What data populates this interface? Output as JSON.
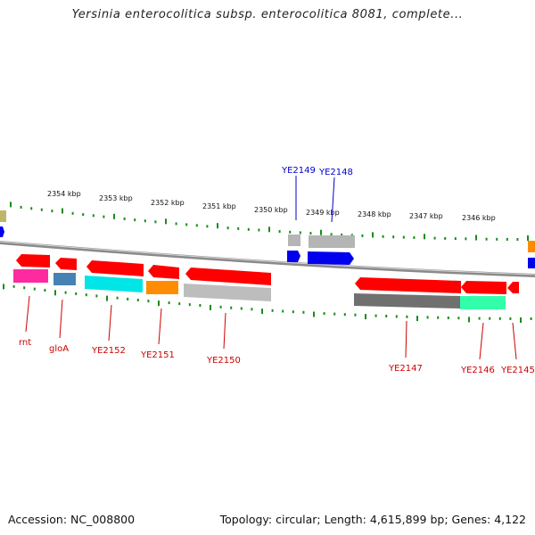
{
  "title": "Yersinia enterocolitica subsp. enterocolitica 8081, complete...",
  "footer": {
    "accession": "Accession: NC_008800",
    "summary": "Topology: circular; Length: 4,615,899 bp; Genes: 4,122"
  },
  "ruler": {
    "ticks": [
      "2354 kbp",
      "2353 kbp",
      "2352 kbp",
      "2351 kbp",
      "2350 kbp",
      "2349 kbp",
      "2348 kbp",
      "2347 kbp",
      "2346 kbp"
    ]
  },
  "colors": {
    "backbone": "#888888",
    "tick": "#1a8c1a",
    "cds": "#ff0000",
    "forward_gene": "#0000ee",
    "label_top": "#0000cc",
    "label_bottom": "#cc0000",
    "product_magenta": "#ff2aa0",
    "product_steel": "#4682b4",
    "product_cyan": "#00e5e5",
    "product_orange": "#ff8c00",
    "product_gray": "#bdbdbd",
    "product_dark": "#707070",
    "product_mint": "#33ffaa",
    "product_olive": "#bdb76b"
  },
  "genes": {
    "top": [
      "YE2149",
      "YE2148"
    ],
    "bottom": [
      "rnt",
      "gloA",
      "YE2152",
      "YE2151",
      "YE2150",
      "YE2147",
      "YE2146",
      "YE2145"
    ]
  }
}
